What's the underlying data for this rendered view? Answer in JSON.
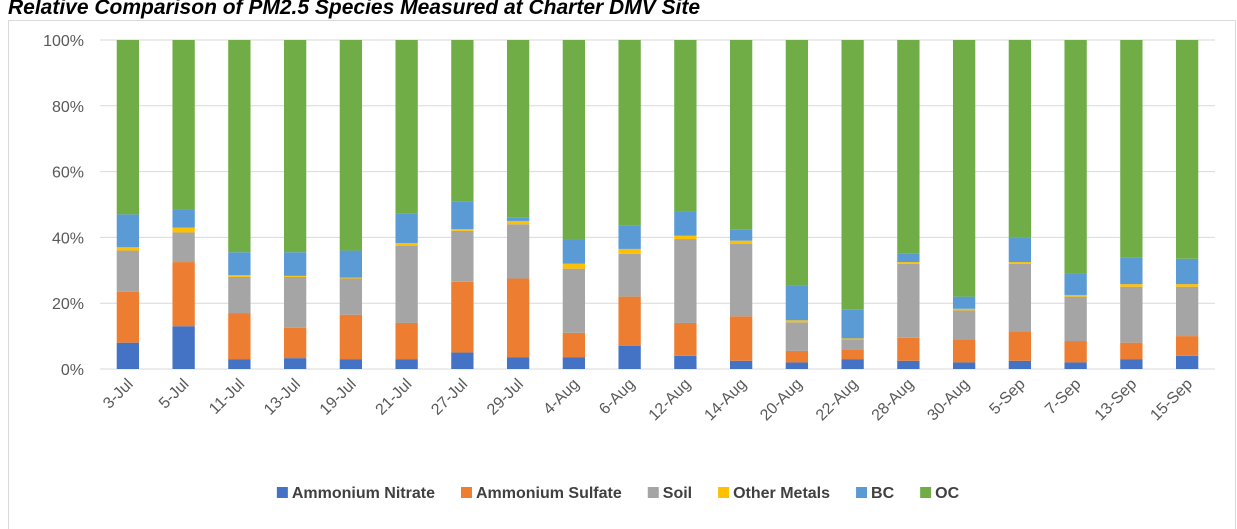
{
  "chart_data": {
    "type": "stacked_bar",
    "title": "Relative Comparison of PM2.5 Species Measured at Charter DMV Site",
    "categories": [
      "3-Jul",
      "5-Jul",
      "11-Jul",
      "13-Jul",
      "19-Jul",
      "21-Jul",
      "27-Jul",
      "29-Jul",
      "4-Aug",
      "6-Aug",
      "12-Aug",
      "14-Aug",
      "20-Aug",
      "22-Aug",
      "28-Aug",
      "30-Aug",
      "5-Sep",
      "7-Sep",
      "13-Sep",
      "15-Sep"
    ],
    "series": [
      {
        "name": "Ammonium Nitrate",
        "color": "#4472c4",
        "values": [
          8,
          13,
          3,
          3.3,
          3,
          3,
          5,
          3.5,
          3.5,
          7,
          4,
          2.5,
          2,
          3,
          2.5,
          2,
          2.5,
          2,
          3,
          4
        ]
      },
      {
        "name": "Ammonium Sulfate",
        "color": "#ed7d31",
        "values": [
          15.5,
          19.5,
          14,
          9.2,
          13.5,
          11,
          21.5,
          24,
          7.5,
          15,
          10,
          13.5,
          3.5,
          3,
          7,
          7,
          9,
          6.5,
          5,
          6
        ]
      },
      {
        "name": "Soil",
        "color": "#a5a5a5",
        "values": [
          12.5,
          9,
          11,
          15.5,
          11,
          23.5,
          15.5,
          16.5,
          19.5,
          13,
          25.5,
          22,
          8.7,
          3,
          22.5,
          8.8,
          20.5,
          13.5,
          17,
          15
        ]
      },
      {
        "name": "Other Metals",
        "color": "#ffc000",
        "values": [
          1,
          1.5,
          0.5,
          0.3,
          0.3,
          0.8,
          0.5,
          1,
          1.5,
          1.5,
          1,
          1,
          0.6,
          0.3,
          0.5,
          0.5,
          0.5,
          0.5,
          0.8,
          0.8
        ]
      },
      {
        "name": "BC",
        "color": "#5b9bd5",
        "values": [
          10,
          5.5,
          7,
          7.2,
          8.2,
          9,
          8.5,
          1,
          7.5,
          7,
          7.5,
          3.5,
          10.7,
          8.7,
          2.5,
          3.7,
          7.5,
          6.5,
          8.2,
          7.7
        ]
      },
      {
        "name": "OC",
        "color": "#70ad47",
        "values": [
          53,
          51.5,
          64.5,
          64.5,
          64,
          52.7,
          49,
          54,
          60.5,
          56.5,
          52,
          57.5,
          74.5,
          82,
          65,
          78,
          60,
          71,
          66,
          66.5
        ]
      }
    ],
    "ylim": [
      0,
      100
    ],
    "yticks": [
      {
        "value": 0,
        "label": "0%"
      },
      {
        "value": 20,
        "label": "20%"
      },
      {
        "value": 40,
        "label": "40%"
      },
      {
        "value": 60,
        "label": "60%"
      },
      {
        "value": 80,
        "label": "80%"
      },
      {
        "value": 100,
        "label": "100%"
      }
    ],
    "grid": true,
    "legend": "bottom"
  }
}
